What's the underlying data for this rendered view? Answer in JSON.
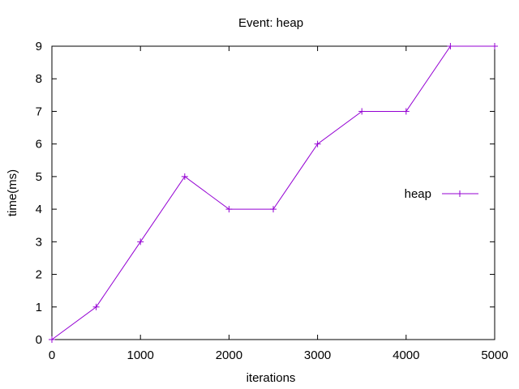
{
  "chart_data": {
    "type": "line",
    "title": "Event: heap",
    "xlabel": "iterations",
    "ylabel": "time(ms)",
    "xlim": [
      0,
      5000
    ],
    "ylim": [
      0,
      9
    ],
    "x_ticks": [
      0,
      1000,
      2000,
      3000,
      4000,
      5000
    ],
    "y_ticks": [
      0,
      1,
      2,
      3,
      4,
      5,
      6,
      7,
      8,
      9
    ],
    "grid": false,
    "legend_position": "right",
    "series": [
      {
        "name": "heap",
        "color": "#9400d3",
        "marker": "plus",
        "x": [
          0,
          500,
          1000,
          1500,
          2000,
          2500,
          3000,
          3500,
          4000,
          4500,
          5000
        ],
        "y": [
          0,
          1,
          3,
          5,
          4,
          4,
          6,
          7,
          7,
          9,
          9
        ]
      }
    ]
  }
}
